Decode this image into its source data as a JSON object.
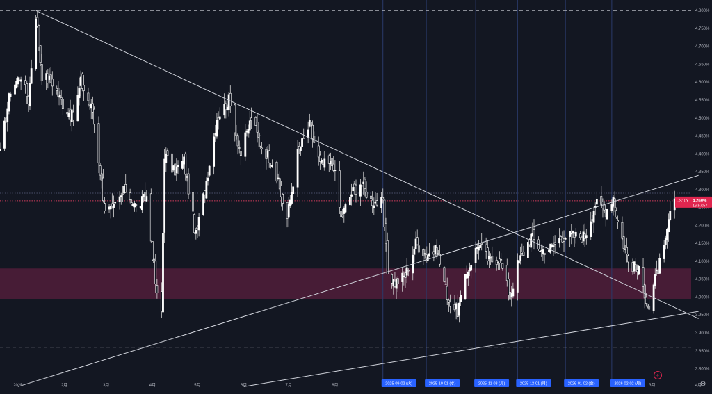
{
  "symbol": "US10Y",
  "current_price_label": "4.269%",
  "countdown": "16:57:57",
  "colors": {
    "background": "#131722",
    "candle_up": "#ffffff",
    "candle_down": "#ffffff",
    "zone": "#5a1f3d",
    "price_line": "#d23c5d",
    "price_tag": "#e0264f",
    "vline": "#2a3a6a",
    "axis_text": "#b2b5be",
    "date_tag": "#2962ff",
    "trendline": "#d1d4dc"
  },
  "icons": {
    "alert": "lightning-icon",
    "settings": "gear-icon"
  },
  "chart_data": {
    "type": "candlestick",
    "title": "",
    "y_unit": "%",
    "ylim": [
      3.775,
      4.81
    ],
    "y_ticks": [
      "4.800%",
      "4.750%",
      "4.700%",
      "4.650%",
      "4.600%",
      "4.550%",
      "4.500%",
      "4.450%",
      "4.400%",
      "4.350%",
      "4.300%",
      "4.250%",
      "4.200%",
      "4.150%",
      "4.100%",
      "4.050%",
      "4.000%",
      "3.950%",
      "3.900%",
      "3.850%",
      "3.800%"
    ],
    "x_range": [
      "2024-12-20",
      "2026-04-10"
    ],
    "x_ticks": [
      {
        "date": "2025-01-01",
        "label": "2025"
      },
      {
        "date": "2025-02-01",
        "label": "2月"
      },
      {
        "date": "2025-03-01",
        "label": "3月"
      },
      {
        "date": "2025-04-01",
        "label": "4月"
      },
      {
        "date": "2025-05-01",
        "label": "5月"
      },
      {
        "date": "2025-06-01",
        "label": "6月"
      },
      {
        "date": "2025-07-01",
        "label": "7月"
      },
      {
        "date": "2025-08-01",
        "label": "8月"
      },
      {
        "date": "2026-03-01",
        "label": "3月"
      },
      {
        "date": "2026-04-01",
        "label": "4月"
      }
    ],
    "date_tags": [
      {
        "date": "2025-09-02",
        "label": "2025-09-02 (火)"
      },
      {
        "date": "2025-10-01",
        "label": "2025-10-01 (水)"
      },
      {
        "date": "2025-11-03",
        "label": "2025-11-03 (月)"
      },
      {
        "date": "2025-12-01",
        "label": "2025-12-01 (月)"
      },
      {
        "date": "2026-01-02",
        "label": "2026-01-02 (金)"
      },
      {
        "date": "2026-02-02",
        "label": "2026-02-02 (月)"
      }
    ],
    "vertical_lines": [
      "2025-09-02",
      "2025-10-01",
      "2025-11-03",
      "2025-12-01",
      "2026-01-02",
      "2026-02-02"
    ],
    "horizontal_lines": [
      {
        "y": 4.8,
        "style": "dashed"
      },
      {
        "y": 3.86,
        "style": "dashed"
      },
      {
        "y": 4.269,
        "style": "dotted-price"
      },
      {
        "y": 4.29,
        "style": "dotted"
      }
    ],
    "zone": {
      "y_top": 4.08,
      "y_bottom": 3.995
    },
    "trendlines": [
      {
        "start": {
          "date": "2025-01-13",
          "y": 4.8
        },
        "end": {
          "date": "2026-04-01",
          "y": 3.94
        }
      },
      {
        "start": {
          "date": "2025-01-01",
          "y": 3.75
        },
        "end": {
          "date": "2026-04-01",
          "y": 4.34
        }
      },
      {
        "start": {
          "date": "2025-06-01",
          "y": 3.75
        },
        "end": {
          "date": "2026-04-01",
          "y": 3.96
        }
      }
    ],
    "anchors": [
      [
        "2024-12-20",
        4.4
      ],
      [
        "2024-12-27",
        4.58
      ],
      [
        "2025-01-03",
        4.62
      ],
      [
        "2025-01-08",
        4.55
      ],
      [
        "2025-01-13",
        4.79
      ],
      [
        "2025-01-17",
        4.62
      ],
      [
        "2025-01-24",
        4.6
      ],
      [
        "2025-01-31",
        4.54
      ],
      [
        "2025-02-07",
        4.5
      ],
      [
        "2025-02-12",
        4.6
      ],
      [
        "2025-02-20",
        4.52
      ],
      [
        "2025-02-28",
        4.25
      ],
      [
        "2025-03-05",
        4.24
      ],
      [
        "2025-03-14",
        4.3
      ],
      [
        "2025-03-21",
        4.25
      ],
      [
        "2025-03-28",
        4.28
      ],
      [
        "2025-04-04",
        4.0
      ],
      [
        "2025-04-07",
        3.96
      ],
      [
        "2025-04-09",
        4.4
      ],
      [
        "2025-04-15",
        4.35
      ],
      [
        "2025-04-22",
        4.38
      ],
      [
        "2025-04-30",
        4.17
      ],
      [
        "2025-05-06",
        4.3
      ],
      [
        "2025-05-14",
        4.5
      ],
      [
        "2025-05-22",
        4.55
      ],
      [
        "2025-05-30",
        4.4
      ],
      [
        "2025-06-06",
        4.5
      ],
      [
        "2025-06-13",
        4.42
      ],
      [
        "2025-06-20",
        4.38
      ],
      [
        "2025-06-30",
        4.22
      ],
      [
        "2025-07-07",
        4.4
      ],
      [
        "2025-07-15",
        4.48
      ],
      [
        "2025-07-22",
        4.37
      ],
      [
        "2025-07-31",
        4.37
      ],
      [
        "2025-08-05",
        4.22
      ],
      [
        "2025-08-12",
        4.29
      ],
      [
        "2025-08-18",
        4.32
      ],
      [
        "2025-08-25",
        4.27
      ],
      [
        "2025-09-02",
        4.26
      ],
      [
        "2025-09-05",
        4.07
      ],
      [
        "2025-09-10",
        4.04
      ],
      [
        "2025-09-17",
        4.06
      ],
      [
        "2025-09-24",
        4.15
      ],
      [
        "2025-10-01",
        4.12
      ],
      [
        "2025-10-08",
        4.13
      ],
      [
        "2025-10-16",
        3.99
      ],
      [
        "2025-10-22",
        3.96
      ],
      [
        "2025-10-29",
        4.08
      ],
      [
        "2025-11-05",
        4.15
      ],
      [
        "2025-11-12",
        4.1
      ],
      [
        "2025-11-19",
        4.11
      ],
      [
        "2025-11-26",
        4.0
      ],
      [
        "2025-12-01",
        4.09
      ],
      [
        "2025-12-10",
        4.17
      ],
      [
        "2025-12-17",
        4.13
      ],
      [
        "2025-12-24",
        4.14
      ],
      [
        "2025-12-31",
        4.17
      ],
      [
        "2026-01-08",
        4.17
      ],
      [
        "2026-01-15",
        4.17
      ],
      [
        "2026-01-22",
        4.26
      ],
      [
        "2026-01-29",
        4.24
      ],
      [
        "2026-02-03",
        4.28
      ],
      [
        "2026-02-06",
        4.21
      ],
      [
        "2026-02-13",
        4.1
      ],
      [
        "2026-02-20",
        4.07
      ],
      [
        "2026-02-27",
        3.97
      ],
      [
        "2026-03-03",
        4.05
      ],
      [
        "2026-03-10",
        4.15
      ],
      [
        "2026-03-13",
        4.24
      ],
      [
        "2026-03-17",
        4.269
      ]
    ]
  }
}
